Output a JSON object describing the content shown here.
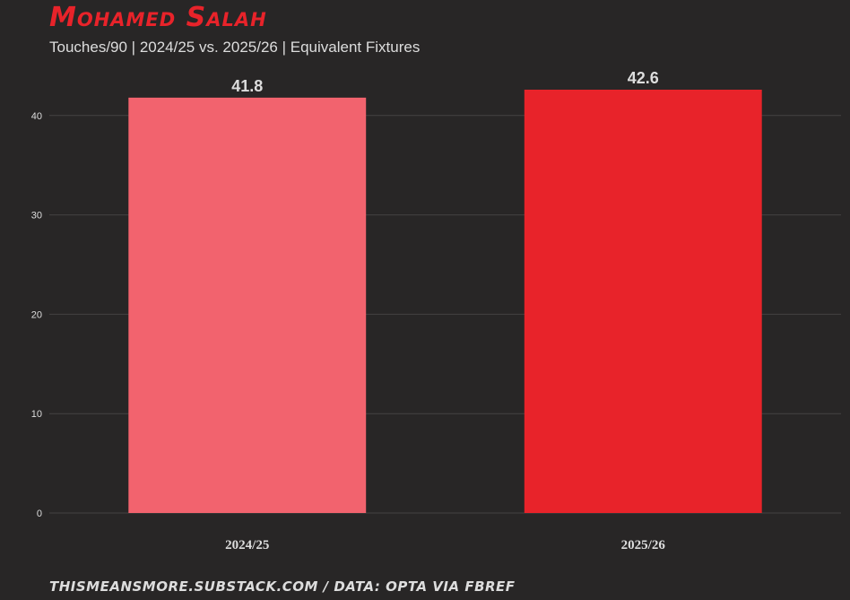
{
  "colors": {
    "background": "#282626",
    "title": "#e8232a",
    "text": "#dddddd",
    "grid": "#444242"
  },
  "chart_data": {
    "type": "bar",
    "title": "Mohamed Salah",
    "subtitle": "Touches/90 | 2024/25 vs. 2025/26 | Equivalent Fixtures",
    "caption": "thismeansmore.substack.com / Data: Opta via FBref",
    "xlabel": "",
    "ylabel": "",
    "categories": [
      "2024/25",
      "2025/26"
    ],
    "values": [
      41.8,
      42.6
    ],
    "data_labels": [
      "41.8",
      "42.6"
    ],
    "bar_colors": [
      "#f2636e",
      "#e8232a"
    ],
    "ylim": [
      0,
      42.6
    ],
    "yticks": [
      0,
      10,
      20,
      30,
      40
    ],
    "grid": "horizontal",
    "legend": "none"
  }
}
